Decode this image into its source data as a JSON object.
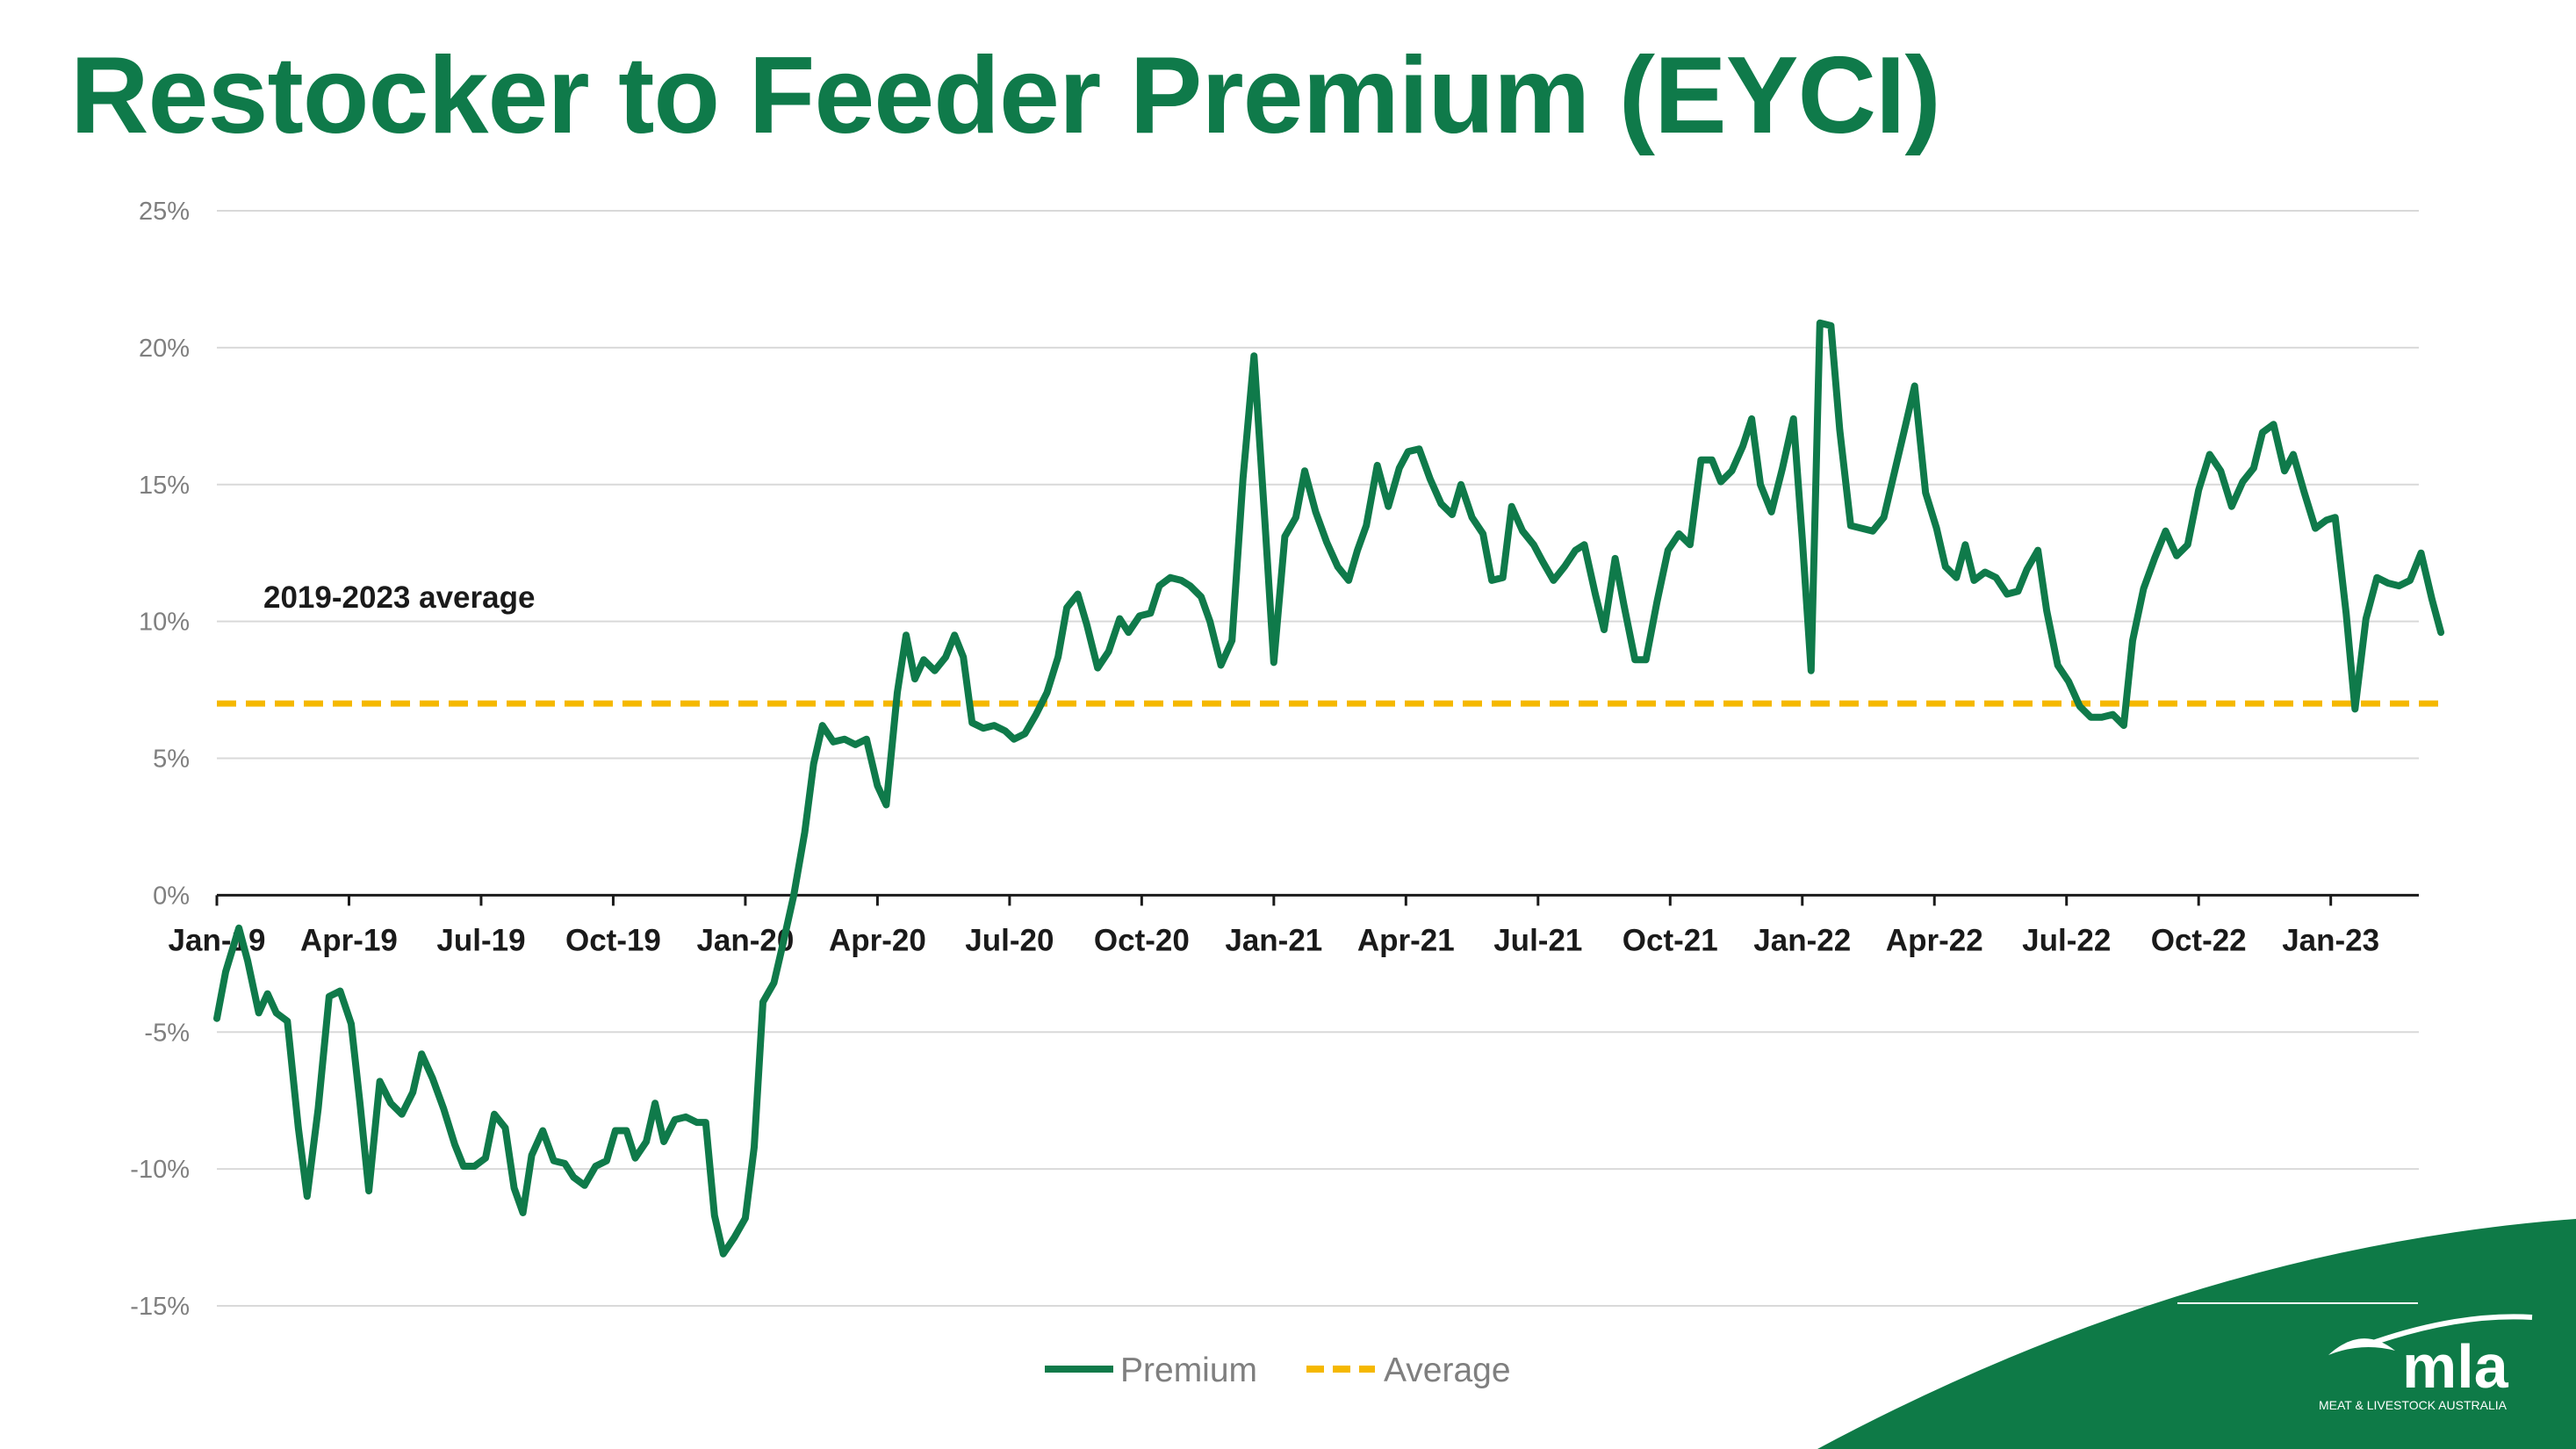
{
  "title": "Restocker to Feeder Premium (EYCI)",
  "annotation": "2019-2023 average",
  "colors": {
    "premium": "#0f7a4a",
    "average": "#f5b800",
    "grid": "#d9d9d9",
    "title": "#0f7a4a",
    "swoosh": "#0e7a47"
  },
  "logo": {
    "wordmark": "mla",
    "tagline": "MEAT & LIVESTOCK AUSTRALIA"
  },
  "chart_data": {
    "type": "line",
    "title": "Restocker to Feeder Premium (EYCI)",
    "xlabel": "",
    "ylabel": "",
    "x_tick_labels": [
      "Jan-19",
      "Apr-19",
      "Jul-19",
      "Oct-19",
      "Jan-20",
      "Apr-20",
      "Jul-20",
      "Oct-20",
      "Jan-21",
      "Apr-21",
      "Jul-21",
      "Oct-21",
      "Jan-22",
      "Apr-22",
      "Jul-22",
      "Oct-22",
      "Jan-23"
    ],
    "y_tick_labels": [
      "25%",
      "20%",
      "15%",
      "10%",
      "5%",
      "0%",
      "-5%",
      "-10%",
      "-15%"
    ],
    "ylim": [
      -15,
      25
    ],
    "y_ticks": [
      25,
      20,
      15,
      10,
      5,
      0,
      -5,
      -10,
      -15
    ],
    "xlim_months": [
      0,
      50
    ],
    "grid": true,
    "legend_position": "bottom",
    "average_value": 7.0,
    "series": [
      {
        "name": "Premium",
        "style": "solid",
        "points": [
          [
            0.0,
            -4.5
          ],
          [
            0.2,
            -2.8
          ],
          [
            0.5,
            -1.2
          ],
          [
            0.7,
            -2.4
          ],
          [
            0.95,
            -4.3
          ],
          [
            1.15,
            -3.6
          ],
          [
            1.35,
            -4.3
          ],
          [
            1.6,
            -4.6
          ],
          [
            1.85,
            -8.5
          ],
          [
            2.05,
            -11.0
          ],
          [
            2.3,
            -7.8
          ],
          [
            2.55,
            -3.7
          ],
          [
            2.8,
            -3.5
          ],
          [
            3.05,
            -4.7
          ],
          [
            3.25,
            -7.6
          ],
          [
            3.45,
            -10.8
          ],
          [
            3.7,
            -6.8
          ],
          [
            3.95,
            -7.6
          ],
          [
            4.2,
            -8.0
          ],
          [
            4.45,
            -7.2
          ],
          [
            4.65,
            -5.8
          ],
          [
            4.9,
            -6.7
          ],
          [
            5.15,
            -7.8
          ],
          [
            5.4,
            -9.1
          ],
          [
            5.6,
            -9.9
          ],
          [
            5.85,
            -9.9
          ],
          [
            6.1,
            -9.6
          ],
          [
            6.3,
            -8.0
          ],
          [
            6.55,
            -8.5
          ],
          [
            6.75,
            -10.7
          ],
          [
            6.95,
            -11.6
          ],
          [
            7.15,
            -9.5
          ],
          [
            7.4,
            -8.6
          ],
          [
            7.65,
            -9.7
          ],
          [
            7.9,
            -9.8
          ],
          [
            8.1,
            -10.3
          ],
          [
            8.35,
            -10.6
          ],
          [
            8.6,
            -9.9
          ],
          [
            8.85,
            -9.7
          ],
          [
            9.05,
            -8.6
          ],
          [
            9.3,
            -8.6
          ],
          [
            9.5,
            -9.6
          ],
          [
            9.75,
            -9.0
          ],
          [
            9.95,
            -7.6
          ],
          [
            10.15,
            -9.0
          ],
          [
            10.4,
            -8.2
          ],
          [
            10.65,
            -8.1
          ],
          [
            10.9,
            -8.3
          ],
          [
            11.1,
            -8.3
          ],
          [
            11.3,
            -11.7
          ],
          [
            11.5,
            -13.1
          ],
          [
            11.75,
            -12.5
          ],
          [
            12.0,
            -11.8
          ],
          [
            12.2,
            -9.2
          ],
          [
            12.4,
            -3.9
          ],
          [
            12.65,
            -3.2
          ],
          [
            12.85,
            -1.8
          ],
          [
            13.1,
            0.0
          ],
          [
            13.35,
            2.3
          ],
          [
            13.55,
            4.8
          ],
          [
            13.75,
            6.2
          ],
          [
            14.0,
            5.6
          ],
          [
            14.25,
            5.7
          ],
          [
            14.5,
            5.5
          ],
          [
            14.75,
            5.7
          ],
          [
            15.0,
            4.0
          ],
          [
            15.2,
            3.3
          ],
          [
            15.45,
            7.4
          ],
          [
            15.65,
            9.5
          ],
          [
            15.85,
            7.9
          ],
          [
            16.05,
            8.6
          ],
          [
            16.3,
            8.2
          ],
          [
            16.55,
            8.7
          ],
          [
            16.75,
            9.5
          ],
          [
            16.95,
            8.7
          ],
          [
            17.15,
            6.3
          ],
          [
            17.4,
            6.1
          ],
          [
            17.65,
            6.2
          ],
          [
            17.9,
            6.0
          ],
          [
            18.1,
            5.7
          ],
          [
            18.35,
            5.9
          ],
          [
            18.6,
            6.6
          ],
          [
            18.85,
            7.4
          ],
          [
            19.1,
            8.7
          ],
          [
            19.3,
            10.5
          ],
          [
            19.55,
            11.0
          ],
          [
            19.75,
            9.9
          ],
          [
            20.0,
            8.3
          ],
          [
            20.25,
            8.9
          ],
          [
            20.5,
            10.1
          ],
          [
            20.7,
            9.6
          ],
          [
            20.95,
            10.2
          ],
          [
            21.2,
            10.3
          ],
          [
            21.4,
            11.3
          ],
          [
            21.65,
            11.6
          ],
          [
            21.9,
            11.5
          ],
          [
            22.1,
            11.3
          ],
          [
            22.35,
            10.9
          ],
          [
            22.55,
            10.0
          ],
          [
            22.8,
            8.4
          ],
          [
            23.05,
            9.3
          ],
          [
            23.3,
            15.2
          ],
          [
            23.55,
            19.7
          ],
          [
            23.8,
            13.6
          ],
          [
            24.0,
            8.5
          ],
          [
            24.25,
            13.1
          ],
          [
            24.5,
            13.8
          ],
          [
            24.7,
            15.5
          ],
          [
            24.95,
            14.0
          ],
          [
            25.2,
            12.9
          ],
          [
            25.45,
            12.0
          ],
          [
            25.7,
            11.5
          ],
          [
            25.9,
            12.6
          ],
          [
            26.1,
            13.5
          ],
          [
            26.35,
            15.7
          ],
          [
            26.6,
            14.2
          ],
          [
            26.85,
            15.6
          ],
          [
            27.05,
            16.2
          ],
          [
            27.3,
            16.3
          ],
          [
            27.55,
            15.2
          ],
          [
            27.8,
            14.3
          ],
          [
            28.05,
            13.9
          ],
          [
            28.25,
            15.0
          ],
          [
            28.5,
            13.8
          ],
          [
            28.75,
            13.2
          ],
          [
            28.95,
            11.5
          ],
          [
            29.2,
            11.6
          ],
          [
            29.4,
            14.2
          ],
          [
            29.65,
            13.3
          ],
          [
            29.9,
            12.8
          ],
          [
            30.1,
            12.2
          ],
          [
            30.35,
            11.5
          ],
          [
            30.6,
            12.0
          ],
          [
            30.85,
            12.6
          ],
          [
            31.05,
            12.8
          ],
          [
            31.3,
            11.0
          ],
          [
            31.5,
            9.7
          ],
          [
            31.75,
            12.3
          ],
          [
            31.95,
            10.6
          ],
          [
            32.2,
            8.6
          ],
          [
            32.45,
            8.6
          ],
          [
            32.7,
            10.7
          ],
          [
            32.95,
            12.6
          ],
          [
            33.2,
            13.2
          ],
          [
            33.45,
            12.8
          ],
          [
            33.7,
            15.9
          ],
          [
            33.95,
            15.9
          ],
          [
            34.15,
            15.1
          ],
          [
            34.4,
            15.5
          ],
          [
            34.65,
            16.4
          ],
          [
            34.85,
            17.4
          ],
          [
            35.05,
            15.0
          ],
          [
            35.3,
            14.0
          ],
          [
            35.55,
            15.6
          ],
          [
            35.8,
            17.4
          ],
          [
            36.0,
            13.0
          ],
          [
            36.2,
            8.2
          ],
          [
            36.4,
            20.9
          ],
          [
            36.65,
            20.8
          ],
          [
            36.85,
            17.0
          ],
          [
            37.1,
            13.5
          ],
          [
            37.35,
            13.4
          ],
          [
            37.6,
            13.3
          ],
          [
            37.85,
            13.8
          ],
          [
            38.1,
            15.5
          ],
          [
            38.35,
            17.2
          ],
          [
            38.55,
            18.6
          ],
          [
            38.8,
            14.7
          ],
          [
            39.05,
            13.4
          ],
          [
            39.25,
            12.0
          ],
          [
            39.5,
            11.6
          ],
          [
            39.7,
            12.8
          ],
          [
            39.9,
            11.5
          ],
          [
            40.15,
            11.8
          ],
          [
            40.4,
            11.6
          ],
          [
            40.65,
            11.0
          ],
          [
            40.9,
            11.1
          ],
          [
            41.1,
            11.9
          ],
          [
            41.35,
            12.6
          ],
          [
            41.55,
            10.4
          ],
          [
            41.8,
            8.4
          ],
          [
            42.05,
            7.8
          ],
          [
            42.3,
            6.9
          ],
          [
            42.55,
            6.5
          ],
          [
            42.8,
            6.5
          ],
          [
            43.05,
            6.6
          ],
          [
            43.3,
            6.2
          ],
          [
            43.5,
            9.3
          ],
          [
            43.75,
            11.2
          ],
          [
            44.0,
            12.3
          ],
          [
            44.25,
            13.3
          ],
          [
            44.5,
            12.4
          ],
          [
            44.75,
            12.8
          ],
          [
            45.0,
            14.8
          ],
          [
            45.25,
            16.1
          ],
          [
            45.5,
            15.5
          ],
          [
            45.75,
            14.2
          ],
          [
            46.0,
            15.1
          ],
          [
            46.25,
            15.6
          ],
          [
            46.45,
            16.9
          ],
          [
            46.7,
            17.2
          ],
          [
            46.95,
            15.5
          ],
          [
            47.15,
            16.1
          ],
          [
            47.4,
            14.7
          ],
          [
            47.65,
            13.4
          ],
          [
            47.9,
            13.7
          ],
          [
            48.1,
            13.8
          ],
          [
            48.35,
            10.3
          ],
          [
            48.55,
            6.8
          ],
          [
            48.8,
            10.1
          ],
          [
            49.05,
            11.6
          ],
          [
            49.3,
            11.4
          ],
          [
            49.55,
            11.3
          ],
          [
            49.8,
            11.5
          ],
          [
            50.05,
            12.5
          ],
          [
            50.3,
            10.8
          ],
          [
            50.5,
            9.6
          ]
        ]
      },
      {
        "name": "Average",
        "style": "dashed",
        "points": [
          [
            0.0,
            7.0
          ],
          [
            50.5,
            7.0
          ]
        ]
      }
    ]
  }
}
